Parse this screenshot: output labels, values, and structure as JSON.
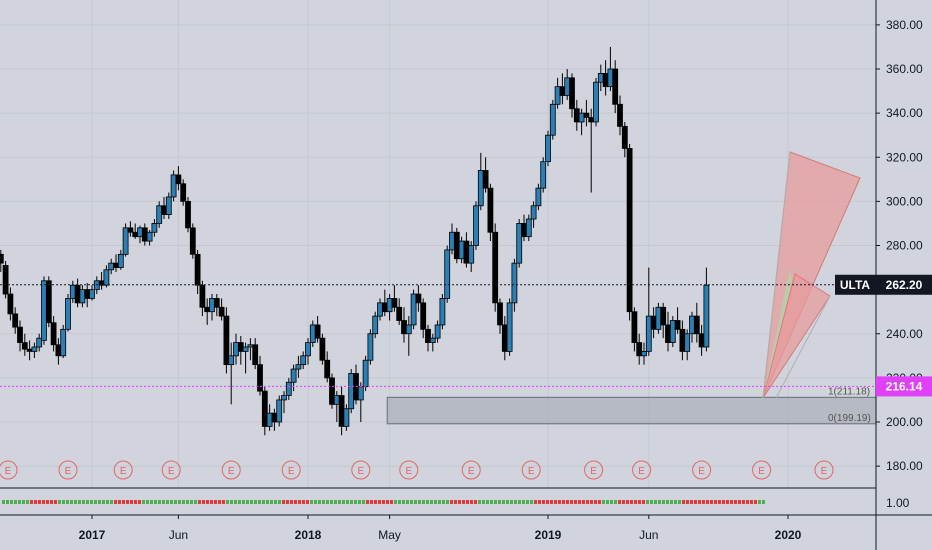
{
  "chart_data": {
    "type": "candlestick",
    "symbol": "ULTA",
    "last_price_label": "262.20",
    "ref_price_label": "216.14",
    "y_axis": {
      "ticks": [
        "380.00",
        "360.00",
        "340.00",
        "320.00",
        "300.00",
        "280.00",
        "240.00",
        "220.00",
        "200.00",
        "180.00"
      ],
      "min": 170,
      "max": 395
    },
    "sub_axis": {
      "ticks": [
        "1.00"
      ]
    },
    "x_axis": {
      "ticks": [
        {
          "label": "2017",
          "bold": true,
          "t": 0.1
        },
        {
          "label": "Jun",
          "bold": false,
          "t": 0.46
        },
        {
          "label": "2018",
          "bold": true,
          "t": 1.0
        },
        {
          "label": "May",
          "bold": false,
          "t": 1.34
        },
        {
          "label": "2019",
          "bold": true,
          "t": 2.0
        },
        {
          "label": "Jun",
          "bold": false,
          "t": 2.42
        },
        {
          "label": "2020",
          "bold": true,
          "t": 3.0
        }
      ],
      "t_min": -0.28,
      "t_max": 3.35
    },
    "fib_levels": [
      {
        "label": "1(211.18)",
        "value": 211.18
      },
      {
        "label": "0(199.19)",
        "value": 199.19
      }
    ],
    "earnings_marker": "E",
    "earnings_t": [
      -0.25,
      0.0,
      0.23,
      0.43,
      0.68,
      0.93,
      1.22,
      1.42,
      1.68,
      1.93,
      2.19,
      2.39,
      2.64,
      2.89,
      3.15
    ],
    "horizontal_levels": [
      262.2,
      216.14
    ],
    "fib_zone": {
      "t_start": 1.33,
      "t_end": 3.35,
      "high": 211.18,
      "low": 199.19
    },
    "weekly_ohlc": [
      [
        -0.28,
        276,
        278,
        268,
        272
      ],
      [
        -0.26,
        271,
        273,
        256,
        258
      ],
      [
        -0.24,
        258,
        261,
        246,
        249
      ],
      [
        -0.22,
        249,
        252,
        240,
        243
      ],
      [
        -0.2,
        243,
        246,
        232,
        236
      ],
      [
        -0.18,
        236,
        240,
        230,
        233
      ],
      [
        -0.16,
        233,
        237,
        228,
        232
      ],
      [
        -0.14,
        232,
        236,
        229,
        234
      ],
      [
        -0.12,
        234,
        240,
        232,
        238
      ],
      [
        -0.1,
        237,
        266,
        235,
        264
      ],
      [
        -0.08,
        264,
        266,
        243,
        245
      ],
      [
        -0.06,
        245,
        248,
        232,
        235
      ],
      [
        -0.04,
        235,
        238,
        226,
        230
      ],
      [
        -0.02,
        230,
        244,
        229,
        242
      ],
      [
        0.0,
        242,
        258,
        241,
        256
      ],
      [
        0.02,
        256,
        264,
        254,
        262
      ],
      [
        0.04,
        262,
        265,
        252,
        254
      ],
      [
        0.06,
        254,
        262,
        252,
        260
      ],
      [
        0.08,
        260,
        263,
        252,
        256
      ],
      [
        0.1,
        256,
        262,
        255,
        260
      ],
      [
        0.12,
        260,
        266,
        258,
        264
      ],
      [
        0.14,
        264,
        268,
        260,
        262
      ],
      [
        0.16,
        262,
        271,
        261,
        269
      ],
      [
        0.18,
        269,
        274,
        267,
        272
      ],
      [
        0.2,
        272,
        276,
        268,
        270
      ],
      [
        0.22,
        270,
        278,
        269,
        276
      ],
      [
        0.24,
        276,
        290,
        275,
        288
      ],
      [
        0.26,
        288,
        291,
        284,
        286
      ],
      [
        0.28,
        286,
        290,
        283,
        284
      ],
      [
        0.3,
        284,
        289,
        281,
        288
      ],
      [
        0.32,
        288,
        290,
        280,
        282
      ],
      [
        0.34,
        282,
        287,
        280,
        286
      ],
      [
        0.36,
        286,
        292,
        284,
        290
      ],
      [
        0.38,
        290,
        300,
        288,
        298
      ],
      [
        0.4,
        298,
        302,
        292,
        294
      ],
      [
        0.42,
        294,
        304,
        292,
        302
      ],
      [
        0.44,
        302,
        314,
        300,
        312
      ],
      [
        0.46,
        312,
        316,
        305,
        308
      ],
      [
        0.48,
        308,
        310,
        298,
        300
      ],
      [
        0.5,
        300,
        302,
        286,
        288
      ],
      [
        0.52,
        288,
        290,
        274,
        276
      ],
      [
        0.54,
        276,
        278,
        258,
        262
      ],
      [
        0.56,
        262,
        264,
        248,
        252
      ],
      [
        0.58,
        252,
        256,
        244,
        250
      ],
      [
        0.6,
        250,
        258,
        246,
        256
      ],
      [
        0.62,
        256,
        258,
        248,
        252
      ],
      [
        0.64,
        252,
        256,
        246,
        248
      ],
      [
        0.66,
        248,
        252,
        222,
        226
      ],
      [
        0.68,
        226,
        236,
        208,
        230
      ],
      [
        0.7,
        230,
        240,
        226,
        236
      ],
      [
        0.72,
        236,
        239,
        226,
        232
      ],
      [
        0.74,
        232,
        236,
        222,
        234
      ],
      [
        0.76,
        234,
        238,
        228,
        235
      ],
      [
        0.78,
        235,
        238,
        224,
        226
      ],
      [
        0.8,
        226,
        230,
        212,
        214
      ],
      [
        0.82,
        214,
        216,
        194,
        198
      ],
      [
        0.84,
        198,
        208,
        196,
        204
      ],
      [
        0.86,
        204,
        206,
        196,
        200
      ],
      [
        0.88,
        200,
        212,
        198,
        210
      ],
      [
        0.9,
        210,
        214,
        204,
        212
      ],
      [
        0.92,
        212,
        220,
        210,
        218
      ],
      [
        0.94,
        218,
        226,
        214,
        224
      ],
      [
        0.96,
        224,
        230,
        220,
        226
      ],
      [
        0.98,
        226,
        232,
        224,
        230
      ],
      [
        1.0,
        230,
        238,
        226,
        236
      ],
      [
        1.02,
        236,
        246,
        234,
        244
      ],
      [
        1.04,
        244,
        248,
        236,
        238
      ],
      [
        1.06,
        238,
        240,
        226,
        228
      ],
      [
        1.08,
        228,
        232,
        218,
        220
      ],
      [
        1.1,
        220,
        222,
        206,
        208
      ],
      [
        1.12,
        208,
        214,
        200,
        212
      ],
      [
        1.14,
        212,
        216,
        194,
        198
      ],
      [
        1.16,
        198,
        208,
        196,
        206
      ],
      [
        1.18,
        206,
        224,
        204,
        222
      ],
      [
        1.2,
        222,
        226,
        208,
        210
      ],
      [
        1.22,
        210,
        218,
        200,
        216
      ],
      [
        1.24,
        216,
        230,
        214,
        228
      ],
      [
        1.26,
        228,
        242,
        226,
        240
      ],
      [
        1.28,
        240,
        250,
        238,
        248
      ],
      [
        1.3,
        248,
        256,
        246,
        254
      ],
      [
        1.32,
        254,
        260,
        248,
        250
      ],
      [
        1.34,
        250,
        258,
        246,
        256
      ],
      [
        1.36,
        256,
        262,
        250,
        252
      ],
      [
        1.38,
        252,
        256,
        244,
        246
      ],
      [
        1.4,
        246,
        252,
        236,
        240
      ],
      [
        1.42,
        240,
        248,
        230,
        244
      ],
      [
        1.44,
        244,
        260,
        242,
        258
      ],
      [
        1.46,
        258,
        262,
        250,
        254
      ],
      [
        1.48,
        254,
        256,
        238,
        242
      ],
      [
        1.5,
        242,
        244,
        232,
        236
      ],
      [
        1.52,
        236,
        240,
        232,
        238
      ],
      [
        1.54,
        238,
        246,
        236,
        244
      ],
      [
        1.56,
        244,
        258,
        242,
        256
      ],
      [
        1.58,
        256,
        280,
        254,
        278
      ],
      [
        1.6,
        278,
        290,
        276,
        286
      ],
      [
        1.62,
        286,
        288,
        272,
        274
      ],
      [
        1.64,
        274,
        284,
        272,
        282
      ],
      [
        1.66,
        282,
        286,
        270,
        272
      ],
      [
        1.68,
        272,
        282,
        268,
        280
      ],
      [
        1.7,
        280,
        300,
        278,
        298
      ],
      [
        1.72,
        298,
        322,
        296,
        314
      ],
      [
        1.74,
        314,
        320,
        304,
        306
      ],
      [
        1.76,
        306,
        308,
        282,
        286
      ],
      [
        1.78,
        286,
        290,
        250,
        254
      ],
      [
        1.8,
        254,
        256,
        240,
        244
      ],
      [
        1.82,
        244,
        248,
        228,
        232
      ],
      [
        1.84,
        232,
        256,
        230,
        254
      ],
      [
        1.86,
        254,
        274,
        250,
        272
      ],
      [
        1.88,
        272,
        292,
        270,
        290
      ],
      [
        1.9,
        290,
        294,
        282,
        284
      ],
      [
        1.92,
        284,
        294,
        282,
        292
      ],
      [
        1.94,
        292,
        300,
        288,
        298
      ],
      [
        1.96,
        298,
        308,
        296,
        306
      ],
      [
        1.98,
        306,
        320,
        304,
        318
      ],
      [
        2.0,
        318,
        332,
        316,
        330
      ],
      [
        2.02,
        330,
        346,
        328,
        344
      ],
      [
        2.04,
        344,
        356,
        342,
        352
      ],
      [
        2.06,
        352,
        358,
        344,
        348
      ],
      [
        2.08,
        348,
        360,
        346,
        356
      ],
      [
        2.1,
        356,
        358,
        338,
        342
      ],
      [
        2.12,
        342,
        346,
        332,
        336
      ],
      [
        2.14,
        336,
        342,
        330,
        340
      ],
      [
        2.16,
        340,
        346,
        334,
        338
      ],
      [
        2.18,
        338,
        342,
        304,
        336
      ],
      [
        2.2,
        336,
        356,
        334,
        354
      ],
      [
        2.22,
        354,
        362,
        350,
        358
      ],
      [
        2.24,
        358,
        364,
        348,
        352
      ],
      [
        2.26,
        352,
        370,
        350,
        360
      ],
      [
        2.28,
        360,
        364,
        340,
        344
      ],
      [
        2.3,
        344,
        348,
        330,
        334
      ],
      [
        2.32,
        334,
        336,
        320,
        324
      ],
      [
        2.34,
        324,
        326,
        246,
        250
      ],
      [
        2.36,
        250,
        252,
        232,
        236
      ],
      [
        2.38,
        236,
        240,
        226,
        230
      ],
      [
        2.4,
        230,
        236,
        226,
        232
      ],
      [
        2.42,
        232,
        270,
        230,
        248
      ],
      [
        2.44,
        248,
        252,
        238,
        242
      ],
      [
        2.46,
        242,
        254,
        240,
        252
      ],
      [
        2.48,
        252,
        254,
        238,
        244
      ],
      [
        2.5,
        244,
        250,
        232,
        236
      ],
      [
        2.52,
        236,
        248,
        234,
        246
      ],
      [
        2.54,
        246,
        252,
        240,
        242
      ],
      [
        2.56,
        242,
        246,
        228,
        232
      ],
      [
        2.58,
        232,
        242,
        228,
        240
      ],
      [
        2.6,
        240,
        250,
        236,
        248
      ],
      [
        2.62,
        248,
        254,
        236,
        240
      ],
      [
        2.64,
        240,
        244,
        230,
        234
      ],
      [
        2.66,
        234,
        270,
        232,
        262
      ]
    ],
    "price_to_t": {
      "t0": 0.0,
      "x0": 68,
      "t1": 1.0,
      "x1": 308
    }
  }
}
